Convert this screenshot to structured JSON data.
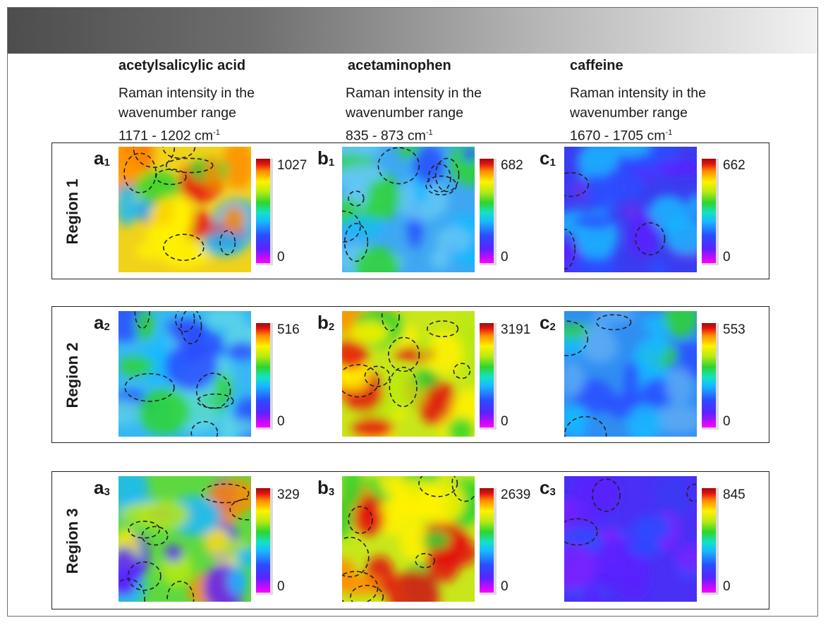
{
  "columns": [
    {
      "name": "acetylsalicylic acid",
      "desc1": "Raman intensity in the",
      "desc2": "wavenumber range",
      "range": "1171 - 1202 cm",
      "unit_exp": "-1"
    },
    {
      "name": "acetaminophen",
      "desc1": "Raman intensity in the",
      "desc2": "wavenumber range",
      "range": "835 - 873 cm",
      "unit_exp": "-1"
    },
    {
      "name": "caffeine",
      "desc1": "Raman intensity in the",
      "desc2": "wavenumber range",
      "range": "1670 - 1705 cm",
      "unit_exp": "-1"
    }
  ],
  "regions": [
    {
      "label": "Region 1",
      "panels": [
        {
          "letter": "a",
          "sub": "1",
          "max": "1027",
          "min": "0"
        },
        {
          "letter": "b",
          "sub": "1",
          "max": "682",
          "min": "0"
        },
        {
          "letter": "c",
          "sub": "1",
          "max": "662",
          "min": "0"
        }
      ]
    },
    {
      "label": "Region 2",
      "panels": [
        {
          "letter": "a",
          "sub": "2",
          "max": "516",
          "min": "0"
        },
        {
          "letter": "b",
          "sub": "2",
          "max": "3191",
          "min": "0"
        },
        {
          "letter": "c",
          "sub": "2",
          "max": "553",
          "min": "0"
        }
      ]
    },
    {
      "label": "Region 3",
      "panels": [
        {
          "letter": "a",
          "sub": "3",
          "max": "329",
          "min": "0"
        },
        {
          "letter": "b",
          "sub": "3",
          "max": "2639",
          "min": "0"
        },
        {
          "letter": "c",
          "sub": "3",
          "max": "845",
          "min": "0"
        }
      ]
    }
  ],
  "colormap": [
    "#ff00ff",
    "#5b22ff",
    "#2a4cff",
    "#19b9ff",
    "#2ed52e",
    "#fff200",
    "#ff8c00",
    "#e41212"
  ]
}
